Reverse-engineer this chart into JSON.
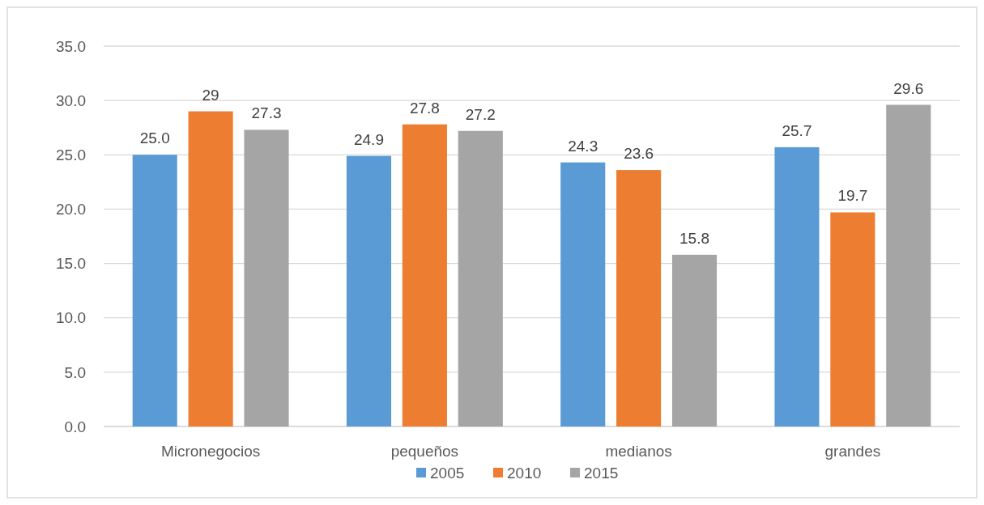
{
  "chart_data": {
    "type": "bar",
    "categories": [
      "Micronegocios",
      "pequeños",
      "medianos",
      "grandes"
    ],
    "series": [
      {
        "name": "2005",
        "color": "#5b9bd5",
        "values": [
          25.0,
          24.9,
          24.3,
          25.7
        ],
        "value_labels": [
          "25.0",
          "24.9",
          "24.3",
          "25.7"
        ]
      },
      {
        "name": "2010",
        "color": "#ed7d31",
        "values": [
          29,
          27.8,
          23.6,
          19.7
        ],
        "value_labels": [
          "29",
          "27.8",
          "23.6",
          "19.7"
        ]
      },
      {
        "name": "2015",
        "color": "#a5a5a5",
        "values": [
          27.3,
          27.2,
          15.8,
          29.6
        ],
        "value_labels": [
          "27.3",
          "27.2",
          "15.8",
          "29.6"
        ]
      }
    ],
    "ylim": [
      0,
      35
    ],
    "yticks": [
      {
        "value": 0,
        "label": "0.0"
      },
      {
        "value": 5,
        "label": "5.0"
      },
      {
        "value": 10,
        "label": "10.0"
      },
      {
        "value": 15,
        "label": "15.0"
      },
      {
        "value": 20,
        "label": "20.0"
      },
      {
        "value": 25,
        "label": "25.0"
      },
      {
        "value": 30,
        "label": "30.0"
      },
      {
        "value": 35,
        "label": "35.0"
      }
    ],
    "grid": "y",
    "legend": "bottom"
  }
}
